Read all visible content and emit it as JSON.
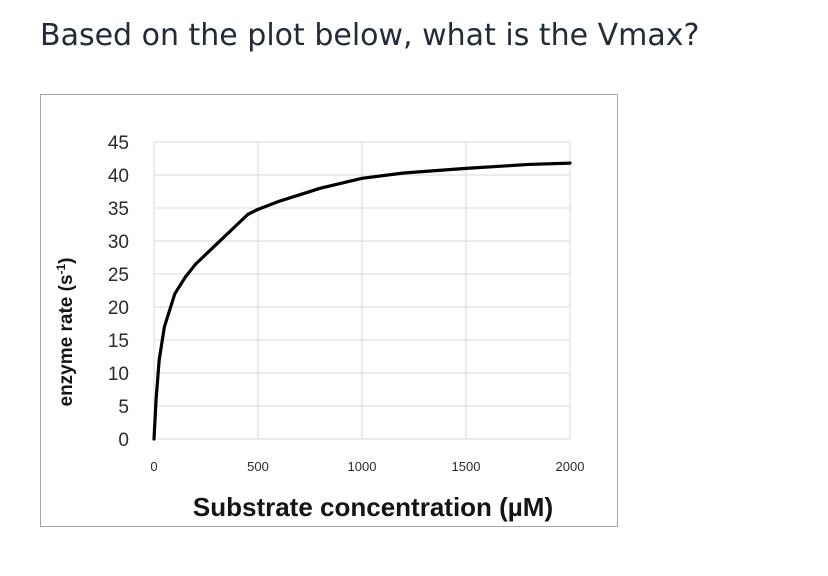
{
  "question": {
    "text": "Based on the plot below, what is the Vmax?"
  },
  "chart_data": {
    "type": "line",
    "xlabel": "Substrate concentration (µM)",
    "ylabel": "enzyme rate (s-1)",
    "ylabel_main": "enzyme rate (s",
    "ylabel_sup": "-1",
    "ylabel_close": ")",
    "xlim": [
      0,
      2000
    ],
    "ylim": [
      0,
      45
    ],
    "xticks": [
      "0",
      "500",
      "1000",
      "1500",
      "2000"
    ],
    "yticks": [
      "0",
      "5",
      "10",
      "15",
      "20",
      "25",
      "30",
      "35",
      "40",
      "45"
    ],
    "grid": true,
    "colors": {
      "line": "#000000",
      "grid": "#d9d9d9",
      "frame": "#a6a6a6"
    },
    "series": [
      {
        "x": [
          0,
          10,
          25,
          50,
          100,
          150,
          200,
          300,
          400,
          450,
          500,
          600,
          700,
          800,
          1000,
          1200,
          1500,
          1800,
          2000
        ],
        "y": [
          0,
          6,
          12,
          17,
          22,
          24.5,
          26.5,
          29.5,
          32.5,
          34,
          34.8,
          36,
          37,
          38,
          39.5,
          40.3,
          41,
          41.6,
          41.8
        ]
      }
    ]
  }
}
